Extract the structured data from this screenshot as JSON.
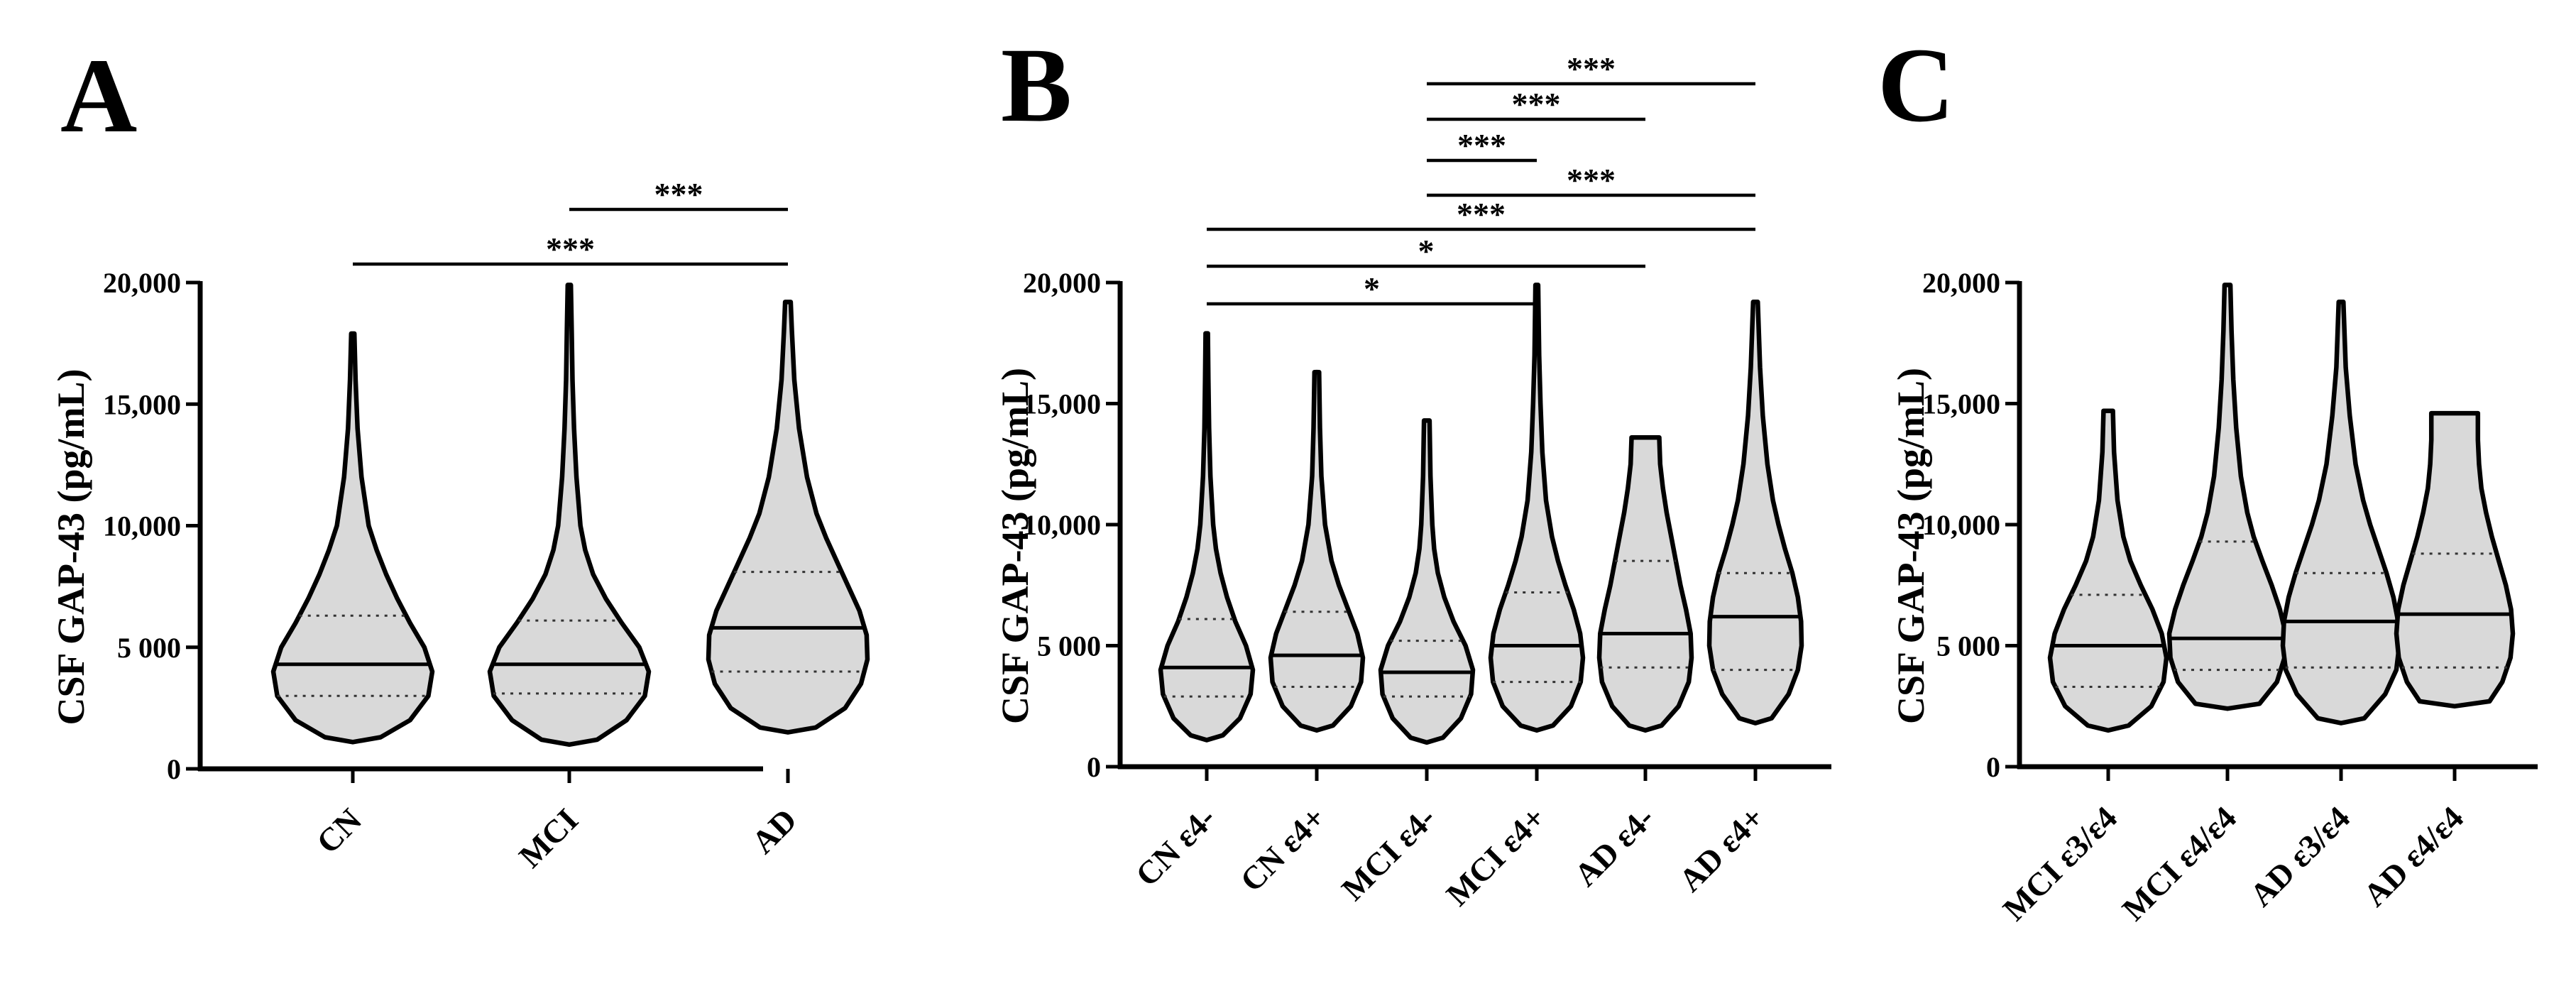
{
  "chart_data": [
    {
      "type": "violin",
      "panel": "A",
      "ylabel": "CSF GAP-43 (pg/mL)",
      "ylim": [
        0,
        20000
      ],
      "yticks": [
        0,
        5000,
        10000,
        15000,
        20000
      ],
      "ytick_labels": [
        "0",
        "5 000",
        "10,000",
        "15,000",
        "20,000"
      ],
      "categories": [
        "CN",
        "MCI",
        "AD"
      ],
      "violins": [
        {
          "name": "CN",
          "min": 1100,
          "q1": 3000,
          "median": 4300,
          "q3": 6300,
          "max": 17900,
          "profile": [
            [
              1100,
              0.0
            ],
            [
              1300,
              0.35
            ],
            [
              2000,
              0.72
            ],
            [
              3000,
              0.95
            ],
            [
              4000,
              1.0
            ],
            [
              5000,
              0.9
            ],
            [
              6000,
              0.72
            ],
            [
              7000,
              0.56
            ],
            [
              8000,
              0.42
            ],
            [
              9000,
              0.3
            ],
            [
              10000,
              0.2
            ],
            [
              12000,
              0.11
            ],
            [
              14000,
              0.06
            ],
            [
              16000,
              0.035
            ],
            [
              17900,
              0.02
            ]
          ]
        },
        {
          "name": "MCI",
          "min": 1000,
          "q1": 3100,
          "median": 4300,
          "q3": 6100,
          "max": 19900,
          "profile": [
            [
              1000,
              0.0
            ],
            [
              1200,
              0.35
            ],
            [
              2000,
              0.72
            ],
            [
              3000,
              0.95
            ],
            [
              4000,
              1.0
            ],
            [
              5000,
              0.88
            ],
            [
              6000,
              0.66
            ],
            [
              7000,
              0.46
            ],
            [
              8000,
              0.3
            ],
            [
              9000,
              0.2
            ],
            [
              10000,
              0.14
            ],
            [
              12000,
              0.09
            ],
            [
              14000,
              0.06
            ],
            [
              16000,
              0.04
            ],
            [
              18000,
              0.03
            ],
            [
              19900,
              0.02
            ]
          ]
        },
        {
          "name": "AD",
          "min": 1500,
          "q1": 4000,
          "median": 5800,
          "q3": 8100,
          "max": 19200,
          "profile": [
            [
              1500,
              0.0
            ],
            [
              1700,
              0.35
            ],
            [
              2500,
              0.72
            ],
            [
              3500,
              0.92
            ],
            [
              4500,
              1.0
            ],
            [
              5500,
              0.99
            ],
            [
              6500,
              0.9
            ],
            [
              7500,
              0.76
            ],
            [
              8500,
              0.62
            ],
            [
              9500,
              0.48
            ],
            [
              10500,
              0.36
            ],
            [
              12000,
              0.24
            ],
            [
              14000,
              0.14
            ],
            [
              16000,
              0.08
            ],
            [
              18000,
              0.05
            ],
            [
              19200,
              0.035
            ]
          ]
        }
      ],
      "significance": [
        {
          "from": "MCI",
          "to": "AD",
          "label": "***"
        },
        {
          "from": "CN",
          "to": "AD",
          "label": "***"
        }
      ]
    },
    {
      "type": "violin",
      "panel": "B",
      "ylabel": "CSF GAP-43 (pg/mL)",
      "ylim": [
        0,
        20000
      ],
      "yticks": [
        0,
        5000,
        10000,
        15000,
        20000
      ],
      "ytick_labels": [
        "0",
        "5 000",
        "10,000",
        "15,000",
        "20,000"
      ],
      "categories": [
        "CN ε4-",
        "CN ε4+",
        "MCI ε4-",
        "MCI ε4+",
        "AD ε4-",
        "AD ε4+"
      ],
      "violins": [
        {
          "name": "CN ε4-",
          "min": 1100,
          "q1": 2900,
          "median": 4100,
          "q3": 6100,
          "max": 17900,
          "profile": [
            [
              1100,
              0.0
            ],
            [
              1300,
              0.35
            ],
            [
              2000,
              0.72
            ],
            [
              3000,
              0.95
            ],
            [
              4000,
              1.0
            ],
            [
              5000,
              0.85
            ],
            [
              6000,
              0.62
            ],
            [
              7000,
              0.44
            ],
            [
              8000,
              0.3
            ],
            [
              9000,
              0.2
            ],
            [
              10000,
              0.14
            ],
            [
              12000,
              0.08
            ],
            [
              14000,
              0.05
            ],
            [
              16000,
              0.035
            ],
            [
              17900,
              0.025
            ]
          ]
        },
        {
          "name": "CN ε4+",
          "min": 1500,
          "q1": 3300,
          "median": 4600,
          "q3": 6400,
          "max": 16300,
          "profile": [
            [
              1500,
              0.0
            ],
            [
              1700,
              0.35
            ],
            [
              2500,
              0.74
            ],
            [
              3500,
              0.96
            ],
            [
              4500,
              1.0
            ],
            [
              5500,
              0.88
            ],
            [
              6500,
              0.68
            ],
            [
              7500,
              0.48
            ],
            [
              8500,
              0.32
            ],
            [
              10000,
              0.18
            ],
            [
              12000,
              0.1
            ],
            [
              14000,
              0.07
            ],
            [
              16300,
              0.05
            ]
          ]
        },
        {
          "name": "MCI ε4-",
          "min": 1000,
          "q1": 2900,
          "median": 3900,
          "q3": 5200,
          "max": 14300,
          "profile": [
            [
              1000,
              0.0
            ],
            [
              1200,
              0.35
            ],
            [
              2000,
              0.74
            ],
            [
              3000,
              0.96
            ],
            [
              4000,
              1.0
            ],
            [
              5000,
              0.84
            ],
            [
              6000,
              0.58
            ],
            [
              7000,
              0.38
            ],
            [
              8000,
              0.24
            ],
            [
              9000,
              0.16
            ],
            [
              10000,
              0.12
            ],
            [
              12000,
              0.08
            ],
            [
              14300,
              0.06
            ]
          ]
        },
        {
          "name": "MCI ε4+",
          "min": 1500,
          "q1": 3500,
          "median": 5000,
          "q3": 7200,
          "max": 19900,
          "profile": [
            [
              1500,
              0.0
            ],
            [
              1700,
              0.35
            ],
            [
              2500,
              0.74
            ],
            [
              3500,
              0.95
            ],
            [
              4500,
              1.0
            ],
            [
              5500,
              0.94
            ],
            [
              6500,
              0.8
            ],
            [
              7500,
              0.62
            ],
            [
              8500,
              0.46
            ],
            [
              9500,
              0.33
            ],
            [
              11000,
              0.2
            ],
            [
              13000,
              0.12
            ],
            [
              15000,
              0.08
            ],
            [
              17000,
              0.05
            ],
            [
              19900,
              0.03
            ]
          ]
        },
        {
          "name": "AD ε4-",
          "min": 1500,
          "q1": 4100,
          "median": 5500,
          "q3": 8500,
          "max": 13600,
          "profile": [
            [
              1500,
              0.0
            ],
            [
              1700,
              0.35
            ],
            [
              2500,
              0.72
            ],
            [
              3500,
              0.94
            ],
            [
              4500,
              1.0
            ],
            [
              5500,
              0.98
            ],
            [
              6500,
              0.88
            ],
            [
              7500,
              0.76
            ],
            [
              8500,
              0.66
            ],
            [
              9500,
              0.56
            ],
            [
              10500,
              0.46
            ],
            [
              11500,
              0.38
            ],
            [
              12500,
              0.32
            ],
            [
              13600,
              0.3
            ]
          ]
        },
        {
          "name": "AD ε4+",
          "min": 1800,
          "q1": 4000,
          "median": 6200,
          "q3": 8000,
          "max": 19200,
          "profile": [
            [
              1800,
              0.0
            ],
            [
              2000,
              0.35
            ],
            [
              3000,
              0.72
            ],
            [
              4000,
              0.92
            ],
            [
              5000,
              1.0
            ],
            [
              6000,
              0.99
            ],
            [
              7000,
              0.92
            ],
            [
              8000,
              0.8
            ],
            [
              9000,
              0.64
            ],
            [
              10000,
              0.5
            ],
            [
              11000,
              0.38
            ],
            [
              12500,
              0.26
            ],
            [
              14500,
              0.16
            ],
            [
              16500,
              0.1
            ],
            [
              19200,
              0.05
            ]
          ]
        }
      ],
      "significance": [
        {
          "from": "MCI ε4-",
          "to": "AD ε4+",
          "label": "***"
        },
        {
          "from": "MCI ε4-",
          "to": "AD ε4-",
          "label": "***"
        },
        {
          "from": "MCI ε4-",
          "to": "MCI ε4+",
          "label": "***"
        },
        {
          "from": "MCI ε4-",
          "to": "AD ε4+",
          "label": "***"
        },
        {
          "from": "CN ε4-",
          "to": "AD ε4+",
          "label": "***"
        },
        {
          "from": "CN ε4-",
          "to": "AD ε4-",
          "label": "*"
        },
        {
          "from": "CN ε4-",
          "to": "MCI ε4+",
          "label": "*"
        }
      ]
    },
    {
      "type": "violin",
      "panel": "C",
      "ylabel": "CSF GAP-43 (pg/mL)",
      "ylim": [
        0,
        20000
      ],
      "yticks": [
        0,
        5000,
        10000,
        15000,
        20000
      ],
      "ytick_labels": [
        "0",
        "5 000",
        "10,000",
        "15,000",
        "20,000"
      ],
      "categories": [
        "MCI ε3/ε4",
        "MCI ε4/ε4",
        "AD ε3/ε4",
        "AD ε4/ε4"
      ],
      "violins": [
        {
          "name": "MCI ε3/ε4",
          "min": 1500,
          "q1": 3300,
          "median": 5000,
          "q3": 7100,
          "max": 14700,
          "profile": [
            [
              1500,
              0.0
            ],
            [
              1700,
              0.35
            ],
            [
              2500,
              0.74
            ],
            [
              3500,
              0.95
            ],
            [
              4500,
              1.0
            ],
            [
              5500,
              0.92
            ],
            [
              6500,
              0.76
            ],
            [
              7500,
              0.56
            ],
            [
              8500,
              0.38
            ],
            [
              9500,
              0.26
            ],
            [
              11000,
              0.16
            ],
            [
              13000,
              0.1
            ],
            [
              14700,
              0.08
            ]
          ]
        },
        {
          "name": "MCI ε4/ε4",
          "min": 2400,
          "q1": 4000,
          "median": 5300,
          "q3": 9300,
          "max": 19900,
          "profile": [
            [
              2400,
              0.0
            ],
            [
              2600,
              0.55
            ],
            [
              3500,
              0.85
            ],
            [
              4500,
              0.98
            ],
            [
              5500,
              1.0
            ],
            [
              6500,
              0.9
            ],
            [
              7500,
              0.76
            ],
            [
              8500,
              0.6
            ],
            [
              9500,
              0.45
            ],
            [
              10500,
              0.34
            ],
            [
              12000,
              0.23
            ],
            [
              14000,
              0.15
            ],
            [
              16000,
              0.1
            ],
            [
              18000,
              0.07
            ],
            [
              19900,
              0.05
            ]
          ]
        },
        {
          "name": "AD ε3/ε4",
          "min": 1800,
          "q1": 4100,
          "median": 6000,
          "q3": 8000,
          "max": 19200,
          "profile": [
            [
              1800,
              0.0
            ],
            [
              2000,
              0.4
            ],
            [
              3000,
              0.76
            ],
            [
              4000,
              0.95
            ],
            [
              5000,
              1.0
            ],
            [
              6000,
              0.98
            ],
            [
              7000,
              0.9
            ],
            [
              8000,
              0.78
            ],
            [
              9000,
              0.64
            ],
            [
              10000,
              0.5
            ],
            [
              11000,
              0.38
            ],
            [
              12500,
              0.25
            ],
            [
              14500,
              0.15
            ],
            [
              16500,
              0.08
            ],
            [
              19200,
              0.04
            ]
          ]
        },
        {
          "name": "AD ε4/ε4",
          "min": 2500,
          "q1": 4100,
          "median": 6300,
          "q3": 8800,
          "max": 14600,
          "profile": [
            [
              2500,
              0.0
            ],
            [
              2700,
              0.6
            ],
            [
              3500,
              0.82
            ],
            [
              4500,
              0.96
            ],
            [
              5500,
              1.0
            ],
            [
              6500,
              0.97
            ],
            [
              7500,
              0.88
            ],
            [
              8500,
              0.76
            ],
            [
              9500,
              0.64
            ],
            [
              10500,
              0.54
            ],
            [
              11500,
              0.46
            ],
            [
              12500,
              0.42
            ],
            [
              13500,
              0.4
            ],
            [
              14600,
              0.4
            ]
          ]
        }
      ],
      "significance": []
    }
  ]
}
